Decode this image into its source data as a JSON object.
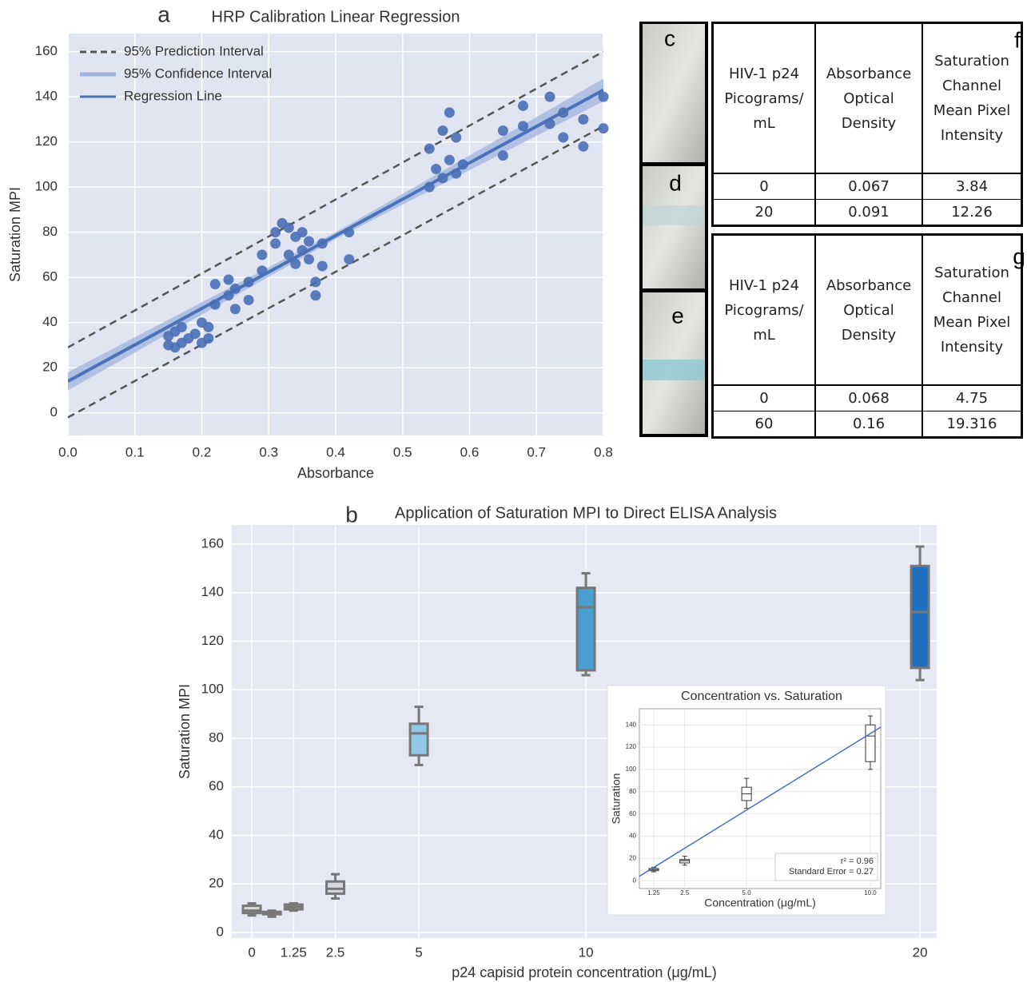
{
  "chart_data": [
    {
      "type": "scatter",
      "panel": "a",
      "title": "HRP Calibration Linear Regression",
      "xlabel": "Absorbance",
      "ylabel": "Saturation MPI",
      "xlim": [
        0,
        0.8
      ],
      "ylim": [
        -10,
        168
      ],
      "xticks": [
        {
          "value": 0,
          "label": "0.0"
        },
        0.1,
        0.2,
        0.3,
        0.4,
        0.5,
        0.6,
        0.7,
        0.8
      ],
      "yticks": [
        0,
        20,
        40,
        60,
        80,
        100,
        120,
        140,
        160
      ],
      "grid": true,
      "background": "#e1e4f1",
      "legend": "upper left",
      "series": [
        {
          "name": "95% Prediction Interval",
          "kind": "interval-lines",
          "color": "#555555",
          "x": [
            0,
            0.8
          ],
          "upper": [
            29,
            160
          ],
          "lower": [
            -2,
            127
          ]
        },
        {
          "name": "95% Confidence Interval",
          "kind": "band",
          "color": "#9fb4de",
          "x": [
            0,
            0.4,
            0.8
          ],
          "upper": [
            18,
            80,
            148
          ],
          "lower": [
            10,
            77,
            138
          ]
        },
        {
          "name": "Regression Line",
          "kind": "line",
          "color": "#4a72b8",
          "x": [
            0,
            0.8
          ],
          "values": [
            14,
            143
          ]
        },
        {
          "kind": "scatter",
          "color": "#4a6fb5",
          "x": [
            0.15,
            0.15,
            0.16,
            0.16,
            0.17,
            0.17,
            0.18,
            0.19,
            0.2,
            0.2,
            0.21,
            0.21,
            0.22,
            0.22,
            0.24,
            0.24,
            0.25,
            0.25,
            0.27,
            0.27,
            0.29,
            0.29,
            0.31,
            0.31,
            0.32,
            0.33,
            0.33,
            0.34,
            0.34,
            0.35,
            0.35,
            0.36,
            0.36,
            0.37,
            0.37,
            0.38,
            0.38,
            0.42,
            0.42,
            0.54,
            0.54,
            0.55,
            0.56,
            0.56,
            0.57,
            0.57,
            0.58,
            0.58,
            0.59,
            0.65,
            0.65,
            0.68,
            0.68,
            0.72,
            0.72,
            0.74,
            0.74,
            0.77,
            0.77,
            0.8,
            0.8
          ],
          "values": [
            30,
            34,
            29,
            36,
            31,
            38,
            33,
            35,
            31,
            40,
            33,
            38,
            48,
            57,
            52,
            59,
            46,
            55,
            50,
            58,
            63,
            70,
            75,
            80,
            84,
            70,
            82,
            66,
            78,
            72,
            80,
            68,
            76,
            52,
            58,
            65,
            75,
            68,
            80,
            100,
            117,
            108,
            104,
            125,
            112,
            133,
            106,
            122,
            110,
            114,
            125,
            127,
            136,
            128,
            140,
            122,
            133,
            118,
            130,
            126,
            140
          ]
        }
      ]
    },
    {
      "type": "box",
      "panel": "b",
      "title": "Application of Saturation MPI to Direct ELISA Analysis",
      "xlabel": "p24 capisid protein concentration (μg/mL)",
      "ylabel": "Saturation MPI",
      "xlim": [
        -0.6,
        20.5
      ],
      "ylim": [
        -2.3,
        167.9
      ],
      "xticks": [
        0,
        1.25,
        2.5,
        5,
        10,
        20
      ],
      "yticks": [
        0,
        20,
        40,
        60,
        80,
        100,
        120,
        140,
        160
      ],
      "grid": true,
      "background": "#e6e8f3",
      "edge_color": "#777777",
      "boxes": [
        {
          "x": 0,
          "low": 7,
          "q1": 8,
          "median": 9,
          "q3": 11,
          "high": 12,
          "color": "#d9d9d9"
        },
        {
          "x": 0.6,
          "low": 6.5,
          "q1": 7.5,
          "median": 8,
          "q3": 8.5,
          "high": 9,
          "color": "#d9d9d9"
        },
        {
          "x": 1.25,
          "low": 9,
          "q1": 9.5,
          "median": 10.5,
          "q3": 11.5,
          "high": 12,
          "color": "#f4dcdc"
        },
        {
          "x": 2.5,
          "low": 14,
          "q1": 16,
          "median": 18,
          "q3": 21,
          "high": 24,
          "color": "#d4d8de"
        },
        {
          "x": 5,
          "low": 69,
          "q1": 73,
          "median": 82,
          "q3": 86,
          "high": 93,
          "color": "#8fcbe8"
        },
        {
          "x": 10,
          "low": 106,
          "q1": 108,
          "median": 134,
          "q3": 142,
          "high": 148,
          "color": "#4a9fd2"
        },
        {
          "x": 20,
          "low": 104,
          "q1": 109,
          "median": 132,
          "q3": 151,
          "high": 159,
          "color": "#1f6fc2"
        }
      ]
    },
    {
      "type": "box",
      "title": "Concentration vs. Saturation",
      "xlabel": "Concentration (μg/mL)",
      "ylabel": "Saturation",
      "xlim": [
        0.67,
        10.42
      ],
      "ylim": [
        -7,
        154.5
      ],
      "xticks": [
        1.25,
        2.5,
        {
          "value": 5,
          "label": "5.0"
        },
        {
          "value": 10,
          "label": "10.0"
        }
      ],
      "yticks": [
        0,
        20,
        40,
        60,
        80,
        100,
        120,
        140
      ],
      "grid": true,
      "background": "#ffffff",
      "edge_color": "#333333",
      "boxes": [
        {
          "x": 1.25,
          "low": 8,
          "q1": 9,
          "median": 10,
          "q3": 11,
          "high": 12,
          "color": "#ffffff"
        },
        {
          "x": 2.5,
          "low": 14,
          "q1": 16,
          "median": 18,
          "q3": 19,
          "high": 22,
          "color": "#ffffff"
        },
        {
          "x": 5,
          "low": 65,
          "q1": 72,
          "median": 78,
          "q3": 84,
          "high": 92,
          "color": "#ffffff"
        },
        {
          "x": 10,
          "low": 100,
          "q1": 107,
          "median": 130,
          "q3": 140,
          "high": 148,
          "color": "#ffffff"
        }
      ],
      "series": [
        {
          "kind": "line",
          "color": "#4a72b8",
          "x": [
            0.67,
            10.42
          ],
          "values": [
            4,
            138
          ]
        }
      ],
      "annotations": [
        "r² = 0.96",
        "Standard Error = 0.27"
      ]
    }
  ],
  "photos": [
    {
      "label": "c"
    },
    {
      "label": "d"
    },
    {
      "label": "e"
    }
  ],
  "tables": [
    {
      "label": "f",
      "header": [
        "HIV-1 p24 Picograms/ mL",
        "Absorbance Optical Density",
        "Saturation Channel Mean Pixel Intensity"
      ],
      "rows": [
        [
          "0",
          "0.067",
          "3.84"
        ],
        [
          "20",
          "0.091",
          "12.26"
        ]
      ]
    },
    {
      "label": "g",
      "header": [
        "HIV-1 p24 Picograms/ mL",
        "Absorbance Optical Density",
        "Saturation Channel Mean Pixel Intensity"
      ],
      "rows": [
        [
          "0",
          "0.068",
          "4.75"
        ],
        [
          "60",
          "0.16",
          "19.316"
        ]
      ]
    }
  ]
}
